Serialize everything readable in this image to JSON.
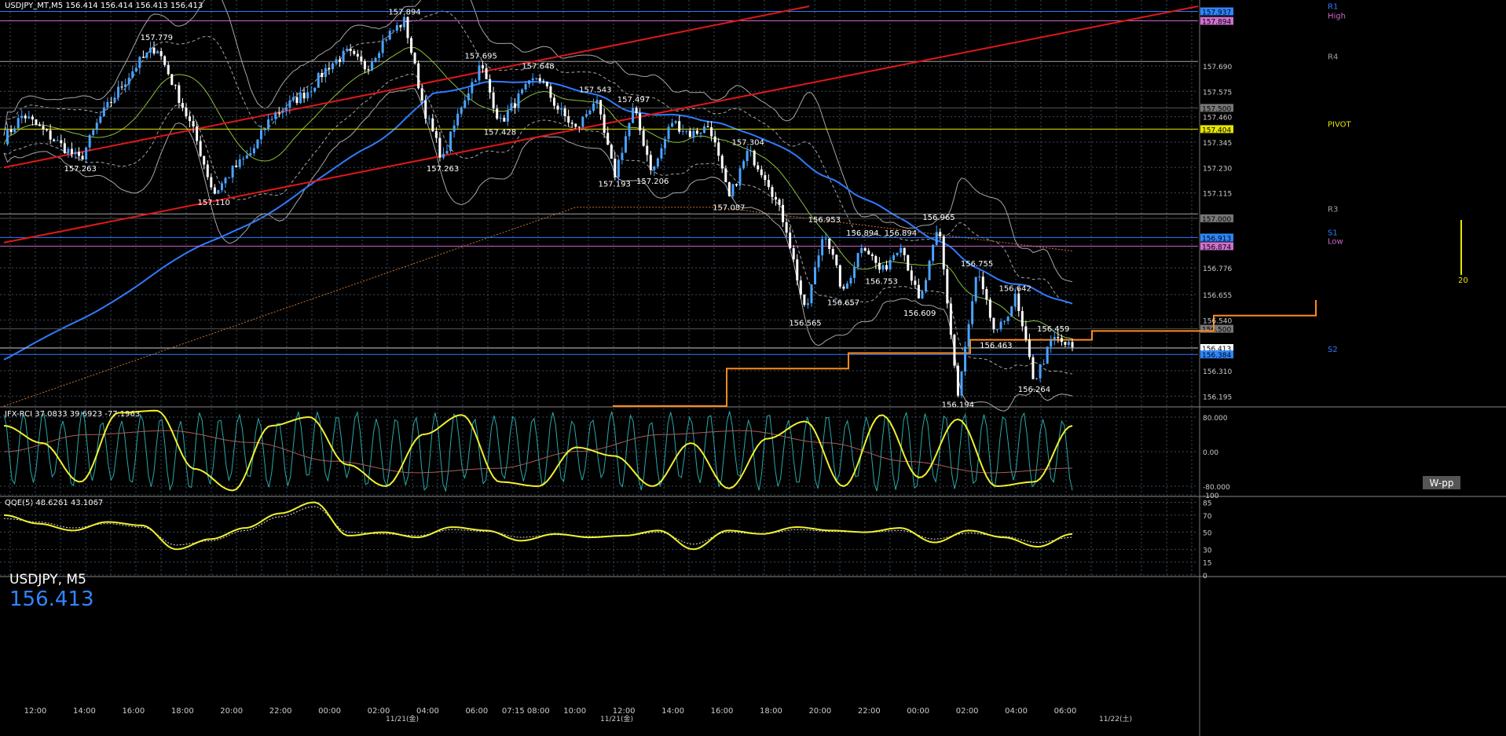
{
  "header": {
    "symbol_text": "USDJPY_MT,M5  156.414 156.414 156.413 156.413"
  },
  "overlay": {
    "symbol": "USDJPY, M5",
    "price": "156.413"
  },
  "wpp_button": "W-pp",
  "colors": {
    "background": "#000000",
    "grid": "#3a4a5a",
    "bull": "#4aa3ff",
    "bear": "#ffffff",
    "ma_blue": "#2f7bff",
    "ma_green": "#8bbf3a",
    "ma_dotted": "#c87530",
    "trend_red": "#e01818",
    "pivot_yellow": "#e6e600",
    "orange_step": "#ff8a1a",
    "rci_yellow": "#f0f030",
    "rci_cyan": "#2aa8a8",
    "rci_pink": "#b05a5a",
    "bands": "#d0d0d0"
  },
  "chart_data": [
    {
      "type": "candlestick",
      "panel": "main",
      "title": "USDJPY_MT,M5",
      "ylim": [
        156.15,
        157.96
      ],
      "y_ticks": [
        "157.690",
        "157.575",
        "157.460",
        "157.345",
        "157.230",
        "157.115",
        "156.776",
        "156.655",
        "156.540",
        "156.310",
        "156.195"
      ],
      "x_ticks": [
        "12:00",
        "14:00",
        "16:00",
        "18:00",
        "20:00",
        "22:00",
        "00:00",
        "02:00",
        "04:00",
        "06:00",
        "07:15 08:00",
        "10:00",
        "12:00",
        "14:00",
        "16:00",
        "18:00",
        "20:00",
        "22:00",
        "00:00",
        "02:00",
        "04:00",
        "06:00"
      ],
      "date_labels": [
        "11/21(金)",
        "11/21(金)",
        "11/22(土)"
      ],
      "price_path": [
        157.36,
        157.47,
        157.4,
        157.33,
        157.263,
        157.45,
        157.58,
        157.7,
        157.779,
        157.58,
        157.38,
        157.11,
        157.22,
        157.3,
        157.46,
        157.52,
        157.58,
        157.69,
        157.75,
        157.68,
        157.82,
        157.894,
        157.5,
        157.263,
        157.52,
        157.695,
        157.43,
        157.55,
        157.648,
        157.5,
        157.4,
        157.543,
        157.193,
        157.497,
        157.206,
        157.44,
        157.38,
        157.42,
        157.087,
        157.304,
        157.18,
        156.96,
        156.565,
        156.953,
        156.657,
        156.894,
        156.753,
        156.894,
        156.609,
        156.965,
        156.194,
        156.755,
        156.463,
        156.642,
        156.264,
        156.459,
        156.413
      ],
      "high_low_labels": [
        {
          "text": "157.894"
        },
        {
          "text": "157.779"
        },
        {
          "text": "157.695"
        },
        {
          "text": "157.648"
        },
        {
          "text": "157.543"
        },
        {
          "text": "157.497"
        },
        {
          "text": "157.428"
        },
        {
          "text": "157.304"
        },
        {
          "text": "157.263"
        },
        {
          "text": "157.263"
        },
        {
          "text": "157.193"
        },
        {
          "text": "157.206"
        },
        {
          "text": "157.110"
        },
        {
          "text": "157.087"
        },
        {
          "text": "156.953"
        },
        {
          "text": "156.965"
        },
        {
          "text": "156.894"
        },
        {
          "text": "156.894"
        },
        {
          "text": "156.755"
        },
        {
          "text": "156.753"
        },
        {
          "text": "156.642"
        },
        {
          "text": "156.565"
        },
        {
          "text": "156.657"
        },
        {
          "text": "156.609"
        },
        {
          "text": "156.463"
        },
        {
          "text": "156.459"
        },
        {
          "text": "156.264"
        },
        {
          "text": "156.194"
        }
      ],
      "level_lines": [
        {
          "name": "R1",
          "value": 157.937,
          "color": "#2f7bff",
          "tag_color": "#2f86ff",
          "tag_text": "157.937"
        },
        {
          "name": "High",
          "value": 157.894,
          "color": "#cc66cc",
          "tag_color": "#d070d0",
          "tag_text": "157.894"
        },
        {
          "name": "R4",
          "value": 157.71,
          "color": "#a0a0a0",
          "tag_color": "",
          "tag_text": ""
        },
        {
          "name": "",
          "value": 157.5,
          "color": "#555555",
          "tag_color": "#777777",
          "tag_text": "157.500"
        },
        {
          "name": "PIVOT",
          "value": 157.404,
          "color": "#e6e600",
          "tag_color": "#e6e600",
          "tag_text": "157.404"
        },
        {
          "name": "R3",
          "value": 157.02,
          "color": "#a0a0a0",
          "tag_color": "",
          "tag_text": ""
        },
        {
          "name": "",
          "value": 157.0,
          "color": "#555555",
          "tag_color": "#777777",
          "tag_text": "157.000"
        },
        {
          "name": "S1",
          "value": 156.913,
          "color": "#2f7bff",
          "tag_color": "#2f86ff",
          "tag_text": "156.913"
        },
        {
          "name": "Low",
          "value": 156.874,
          "color": "#cc66cc",
          "tag_color": "#d070d0",
          "tag_text": "156.874"
        },
        {
          "name": "",
          "value": 156.5,
          "color": "#555555",
          "tag_color": "#777777",
          "tag_text": "156.500"
        },
        {
          "name": "",
          "value": 156.413,
          "color": "#cccccc",
          "tag_color": "#ffffff",
          "tag_text": "156.413"
        },
        {
          "name": "S2",
          "value": 156.384,
          "color": "#2f7bff",
          "tag_color": "#2f86ff",
          "tag_text": "156.384"
        }
      ],
      "orange_steps": [
        156.15,
        156.32,
        156.39,
        156.45,
        156.49,
        156.56,
        156.63
      ],
      "right_scale_marker": "20"
    },
    {
      "type": "line",
      "panel": "rci",
      "title": "JFX-RCI 37.0833 39.6923 -77.1963",
      "ylim": [
        -100,
        100
      ],
      "y_ticks": [
        "80.000",
        "0.00",
        "-80.000",
        "-100"
      ],
      "series": [
        {
          "name": "37.0833",
          "color": "#2aa8a8",
          "values": []
        },
        {
          "name": "39.6923",
          "color": "#f0f030",
          "values": [
            60,
            20,
            -70,
            90,
            95,
            -40,
            -90,
            60,
            80,
            -30,
            -80,
            40,
            85,
            -70,
            -80,
            10,
            -10,
            -80,
            20,
            -85,
            30,
            70,
            -80,
            85,
            -60,
            75,
            -80,
            -70,
            60
          ]
        },
        {
          "name": "-77.1963",
          "color": "#b05a5a",
          "values": []
        }
      ]
    },
    {
      "type": "line",
      "panel": "qqe",
      "title": "QQE(5) 48.6261 43.1067",
      "ylim": [
        0,
        90
      ],
      "y_ticks": [
        "85",
        "70",
        "50",
        "30",
        "15",
        "0"
      ],
      "series": [
        {
          "name": "48.6261",
          "color": "#f0f030",
          "values": [
            70,
            60,
            52,
            62,
            58,
            30,
            42,
            55,
            72,
            85,
            46,
            50,
            44,
            56,
            52,
            40,
            48,
            44,
            46,
            52,
            30,
            52,
            48,
            56,
            52,
            50,
            55,
            38,
            52,
            44,
            33,
            48
          ]
        },
        {
          "name": "43.1067",
          "color": "#dddddd",
          "values": [
            66,
            62,
            55,
            60,
            56,
            35,
            40,
            52,
            68,
            80,
            50,
            48,
            46,
            53,
            51,
            44,
            47,
            45,
            46,
            50,
            36,
            50,
            48,
            53,
            51,
            50,
            52,
            42,
            49,
            45,
            38,
            44
          ]
        }
      ]
    }
  ]
}
